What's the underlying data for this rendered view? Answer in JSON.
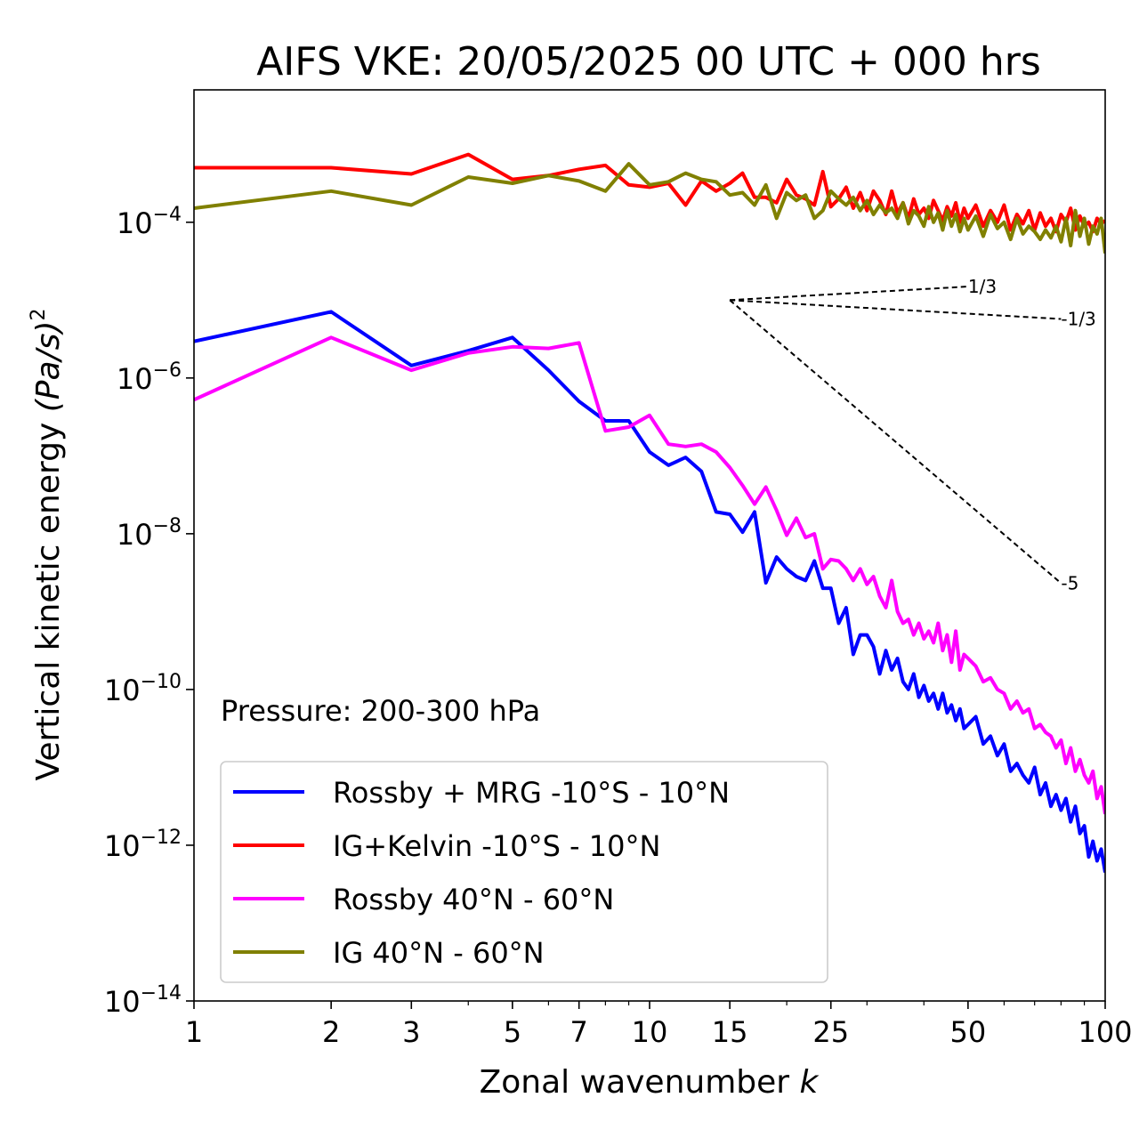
{
  "chart_data": {
    "type": "line",
    "title": "AIFS VKE: 20/05/2025 00 UTC + 000 hrs",
    "xlabel": "Zonal wavenumber",
    "xlabel_var": "k",
    "ylabel": "Vertical kinetic energy",
    "ylabel_unit_base": "(Pa/s)",
    "ylabel_unit_exp": "2",
    "xscale": "log",
    "yscale": "log",
    "xlim": [
      1,
      100
    ],
    "ylim": [
      1e-14,
      0.01
    ],
    "ylim_display_exp": [
      -14,
      -2.3
    ],
    "xticks": [
      1,
      2,
      3,
      5,
      7,
      10,
      15,
      25,
      50,
      100
    ],
    "xtick_labels": [
      "1",
      "2",
      "3",
      "5",
      "7",
      "10",
      "15",
      "25",
      "50",
      "100"
    ],
    "yticks_exp": [
      -14,
      -12,
      -10,
      -8,
      -6,
      -4
    ],
    "ytick_base": "10",
    "ytick_exponents": [
      "−14",
      "−12",
      "−10",
      "−8",
      "−6",
      "−4"
    ],
    "annotation": "Pressure: 200-300 hPa",
    "legend_position": "lower-left",
    "grid": false,
    "reference_slopes": [
      {
        "label": "1/3",
        "slope": 0.3333,
        "x0": 15,
        "y0": 1e-05,
        "x1": 50
      },
      {
        "label": "-1/3",
        "slope": -0.3333,
        "x0": 15,
        "y0": 1e-05,
        "x1": 80
      },
      {
        "label": "-5",
        "slope": -5,
        "x0": 15,
        "y0": 1e-05,
        "x1": 80
      }
    ],
    "series": [
      {
        "name": "Rossby + MRG -10°S - 10°N",
        "color": "#0000ff",
        "x": [
          1,
          2,
          3,
          4,
          5,
          6,
          7,
          8,
          9,
          10,
          11,
          12,
          13,
          14,
          15,
          16,
          17,
          18,
          19,
          20,
          21,
          22,
          23,
          24,
          25,
          26,
          27,
          28,
          29,
          30,
          31,
          32,
          33,
          34,
          35,
          36,
          37,
          38,
          39,
          40,
          41,
          42,
          43,
          44,
          45,
          46,
          47,
          48,
          49,
          50,
          52,
          54,
          56,
          58,
          60,
          62,
          64,
          66,
          68,
          70,
          72,
          74,
          76,
          78,
          80,
          82,
          84,
          86,
          88,
          90,
          92,
          94,
          96,
          98,
          100
        ],
        "y_exp": [
          -5.53,
          -5.15,
          -5.84,
          -5.65,
          -5.48,
          -5.9,
          -6.3,
          -6.55,
          -6.55,
          -6.95,
          -7.12,
          -7.02,
          -7.2,
          -7.72,
          -7.75,
          -7.98,
          -7.72,
          -8.63,
          -8.3,
          -8.45,
          -8.55,
          -8.6,
          -8.35,
          -8.7,
          -8.7,
          -9.15,
          -8.95,
          -9.55,
          -9.3,
          -9.3,
          -9.45,
          -9.8,
          -9.5,
          -9.75,
          -9.6,
          -9.9,
          -10.0,
          -9.8,
          -10.1,
          -9.95,
          -10.15,
          -10.05,
          -10.25,
          -10.05,
          -10.3,
          -10.2,
          -10.4,
          -10.25,
          -10.5,
          -10.45,
          -10.35,
          -10.7,
          -10.6,
          -10.85,
          -10.7,
          -11.05,
          -10.95,
          -11.1,
          -11.2,
          -11.0,
          -11.35,
          -11.2,
          -11.5,
          -11.35,
          -11.55,
          -11.4,
          -11.7,
          -11.5,
          -11.85,
          -11.75,
          -12.15,
          -11.95,
          -12.2,
          -12.05,
          -12.35
        ]
      },
      {
        "name": "IG+Kelvin -10°S - 10°N",
        "color": "#ff0000",
        "x": [
          1,
          2,
          3,
          4,
          5,
          6,
          7,
          8,
          9,
          10,
          11,
          12,
          13,
          14,
          15,
          16,
          17,
          18,
          19,
          20,
          21,
          22,
          23,
          24,
          25,
          26,
          27,
          28,
          29,
          30,
          31,
          32,
          33,
          34,
          35,
          36,
          37,
          38,
          39,
          40,
          41,
          42,
          43,
          44,
          45,
          46,
          47,
          48,
          49,
          50,
          52,
          54,
          56,
          58,
          60,
          62,
          64,
          66,
          68,
          70,
          72,
          74,
          76,
          78,
          80,
          82,
          84,
          86,
          88,
          90,
          92,
          94,
          96,
          98,
          100
        ],
        "y_exp": [
          -3.3,
          -3.3,
          -3.38,
          -3.13,
          -3.45,
          -3.4,
          -3.32,
          -3.27,
          -3.52,
          -3.55,
          -3.5,
          -3.78,
          -3.47,
          -3.6,
          -3.5,
          -3.37,
          -3.68,
          -3.68,
          -3.75,
          -3.45,
          -3.65,
          -3.7,
          -3.78,
          -3.35,
          -3.8,
          -3.7,
          -3.55,
          -3.82,
          -3.62,
          -3.85,
          -3.6,
          -3.72,
          -3.9,
          -3.6,
          -3.88,
          -3.75,
          -3.95,
          -3.7,
          -3.9,
          -3.82,
          -3.95,
          -3.72,
          -3.85,
          -3.98,
          -3.8,
          -3.92,
          -3.75,
          -4.0,
          -3.82,
          -3.95,
          -3.78,
          -4.05,
          -3.85,
          -4.0,
          -3.78,
          -4.1,
          -3.9,
          -4.02,
          -3.85,
          -4.1,
          -3.88,
          -4.05,
          -3.95,
          -4.12,
          -3.9,
          -4.0,
          -3.82,
          -4.1,
          -3.92,
          -4.05,
          -4.0,
          -4.12,
          -3.95,
          -4.02,
          -3.98
        ]
      },
      {
        "name": "Rossby 40°N - 60°N",
        "color": "#ff00ff",
        "x": [
          1,
          2,
          3,
          4,
          5,
          6,
          7,
          8,
          9,
          10,
          11,
          12,
          13,
          14,
          15,
          16,
          17,
          18,
          19,
          20,
          21,
          22,
          23,
          24,
          25,
          26,
          27,
          28,
          29,
          30,
          31,
          32,
          33,
          34,
          35,
          36,
          37,
          38,
          39,
          40,
          41,
          42,
          43,
          44,
          45,
          46,
          47,
          48,
          49,
          50,
          52,
          54,
          56,
          58,
          60,
          62,
          64,
          66,
          68,
          70,
          72,
          74,
          76,
          78,
          80,
          82,
          84,
          86,
          88,
          90,
          92,
          94,
          96,
          98,
          100
        ],
        "y_exp": [
          -6.28,
          -5.48,
          -5.9,
          -5.68,
          -5.6,
          -5.62,
          -5.55,
          -6.68,
          -6.63,
          -6.48,
          -6.85,
          -6.88,
          -6.85,
          -6.95,
          -7.15,
          -7.38,
          -7.62,
          -7.4,
          -7.7,
          -8.02,
          -7.8,
          -8.05,
          -8.0,
          -8.45,
          -8.33,
          -8.35,
          -8.45,
          -8.6,
          -8.45,
          -8.65,
          -8.55,
          -8.8,
          -8.95,
          -8.6,
          -9.0,
          -9.15,
          -9.1,
          -9.3,
          -9.15,
          -9.35,
          -9.25,
          -9.4,
          -9.15,
          -9.5,
          -9.3,
          -9.65,
          -9.25,
          -9.75,
          -9.55,
          -9.6,
          -9.7,
          -9.9,
          -9.85,
          -10.0,
          -10.05,
          -10.25,
          -10.15,
          -10.3,
          -10.25,
          -10.5,
          -10.45,
          -10.55,
          -10.6,
          -10.75,
          -10.65,
          -10.95,
          -10.75,
          -11.05,
          -10.9,
          -11.1,
          -11.2,
          -11.05,
          -11.4,
          -11.25,
          -11.6
        ]
      },
      {
        "name": "IG 40°N - 60°N",
        "color": "#808000",
        "x": [
          1,
          2,
          3,
          4,
          5,
          6,
          7,
          8,
          9,
          10,
          11,
          12,
          13,
          14,
          15,
          16,
          17,
          18,
          19,
          20,
          21,
          22,
          23,
          24,
          25,
          26,
          27,
          28,
          29,
          30,
          31,
          32,
          33,
          34,
          35,
          36,
          37,
          38,
          39,
          40,
          41,
          42,
          43,
          44,
          45,
          46,
          47,
          48,
          49,
          50,
          52,
          54,
          56,
          58,
          60,
          62,
          64,
          66,
          68,
          70,
          72,
          74,
          76,
          78,
          80,
          82,
          84,
          86,
          88,
          90,
          92,
          94,
          96,
          98,
          100
        ],
        "y_exp": [
          -3.82,
          -3.6,
          -3.78,
          -3.42,
          -3.5,
          -3.4,
          -3.47,
          -3.6,
          -3.25,
          -3.52,
          -3.48,
          -3.37,
          -3.45,
          -3.48,
          -3.65,
          -3.62,
          -3.78,
          -3.52,
          -3.95,
          -3.62,
          -3.72,
          -3.65,
          -3.95,
          -3.85,
          -3.6,
          -3.7,
          -3.78,
          -3.68,
          -3.85,
          -3.72,
          -3.9,
          -3.78,
          -3.88,
          -3.82,
          -3.95,
          -3.75,
          -4.02,
          -3.85,
          -3.92,
          -4.05,
          -3.8,
          -4.0,
          -3.88,
          -4.1,
          -3.85,
          -4.05,
          -3.9,
          -4.12,
          -3.95,
          -4.1,
          -3.92,
          -4.18,
          -3.9,
          -4.08,
          -4.0,
          -4.22,
          -3.95,
          -4.15,
          -4.05,
          -4.12,
          -4.22,
          -4.1,
          -4.2,
          -4.05,
          -4.25,
          -3.95,
          -4.3,
          -3.85,
          -4.18,
          -3.95,
          -4.28,
          -4.05,
          -4.15,
          -3.95,
          -4.4
        ]
      }
    ]
  }
}
